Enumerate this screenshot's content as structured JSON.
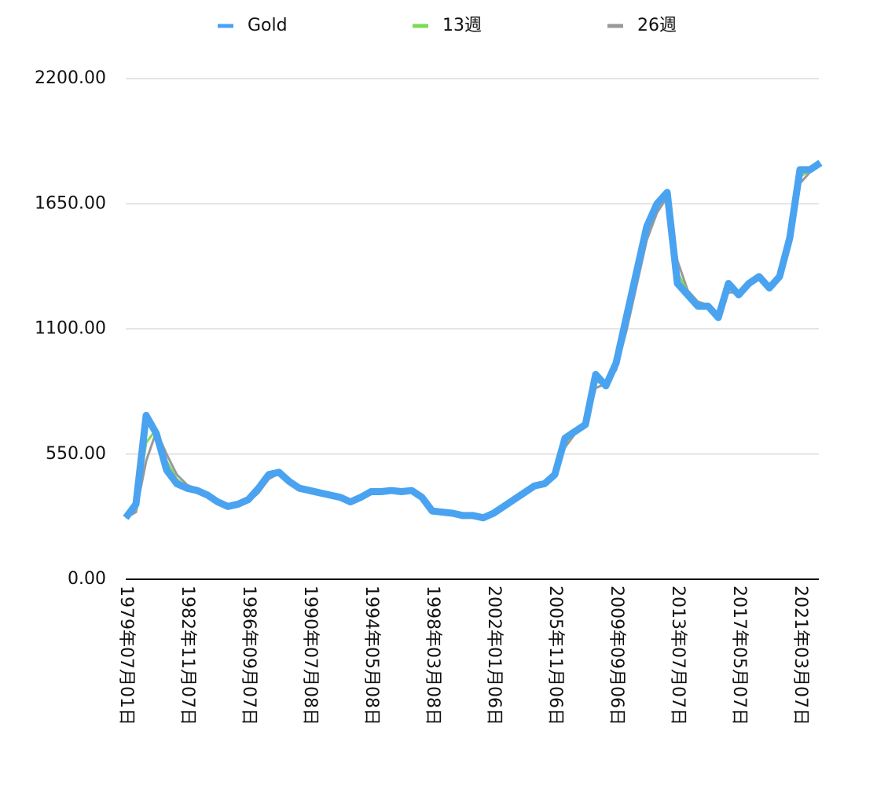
{
  "chart_data": {
    "type": "line",
    "categories": [
      "1979年07月01日",
      null,
      null,
      null,
      null,
      null,
      "1982年11月07日",
      null,
      null,
      null,
      null,
      null,
      "1986年09月07日",
      null,
      null,
      null,
      null,
      null,
      "1990年07月08日",
      null,
      null,
      null,
      null,
      null,
      "1994年05月08日",
      null,
      null,
      null,
      null,
      null,
      "1998年03月08日",
      null,
      null,
      null,
      null,
      null,
      "2002年01月06日",
      null,
      null,
      null,
      null,
      null,
      "2005年11月06日",
      null,
      null,
      null,
      null,
      null,
      "2009年09月06日",
      null,
      null,
      null,
      null,
      null,
      "2013年07月07日",
      null,
      null,
      null,
      null,
      null,
      "2017年05月07日",
      null,
      null,
      null,
      null,
      null,
      "2021年03月07日",
      null,
      null
    ],
    "series": [
      {
        "name": "Gold",
        "color": "#4aa3f0",
        "values": [
          270,
          330,
          720,
          640,
          480,
          420,
          400,
          390,
          370,
          340,
          320,
          330,
          350,
          400,
          460,
          470,
          430,
          400,
          390,
          380,
          370,
          360,
          340,
          360,
          385,
          385,
          390,
          385,
          390,
          360,
          300,
          295,
          290,
          280,
          280,
          270,
          290,
          320,
          350,
          380,
          410,
          420,
          460,
          620,
          650,
          680,
          900,
          850,
          950,
          1150,
          1350,
          1550,
          1650,
          1700,
          1300,
          1250,
          1200,
          1200,
          1150,
          1300,
          1250,
          1300,
          1330,
          1280,
          1330,
          1500,
          1800,
          1800,
          1830
        ]
      },
      {
        "name": "13週",
        "color": "#7ed957",
        "values": [
          270,
          310,
          600,
          660,
          520,
          440,
          405,
          392,
          375,
          345,
          322,
          328,
          345,
          390,
          450,
          468,
          435,
          405,
          392,
          382,
          372,
          362,
          345,
          358,
          380,
          385,
          388,
          386,
          389,
          365,
          305,
          296,
          291,
          282,
          280,
          272,
          287,
          315,
          345,
          375,
          405,
          418,
          452,
          600,
          645,
          675,
          870,
          855,
          935,
          1120,
          1320,
          1520,
          1630,
          1690,
          1350,
          1260,
          1210,
          1200,
          1160,
          1280,
          1255,
          1295,
          1325,
          1285,
          1325,
          1480,
          1770,
          1795,
          1825
        ]
      },
      {
        "name": "26週",
        "color": "#999999",
        "values": [
          270,
          295,
          520,
          650,
          550,
          460,
          415,
          395,
          380,
          350,
          325,
          327,
          340,
          380,
          440,
          465,
          440,
          410,
          395,
          385,
          374,
          364,
          348,
          356,
          376,
          384,
          387,
          386,
          388,
          370,
          312,
          298,
          292,
          284,
          281,
          274,
          284,
          310,
          340,
          370,
          400,
          415,
          445,
          580,
          640,
          670,
          840,
          860,
          920,
          1090,
          1290,
          1490,
          1610,
          1680,
          1400,
          1270,
          1220,
          1205,
          1170,
          1260,
          1260,
          1290,
          1320,
          1290,
          1320,
          1460,
          1740,
          1790,
          1820
        ]
      }
    ],
    "ylim": [
      0,
      2200
    ],
    "yticks": [
      {
        "value": 0,
        "label": "0.00"
      },
      {
        "value": 550,
        "label": "550.00"
      },
      {
        "value": 1100,
        "label": "1100.00"
      },
      {
        "value": 1650,
        "label": "1650.00"
      },
      {
        "value": 2200,
        "label": "2200.00"
      }
    ],
    "grid": true,
    "legend": "top"
  }
}
